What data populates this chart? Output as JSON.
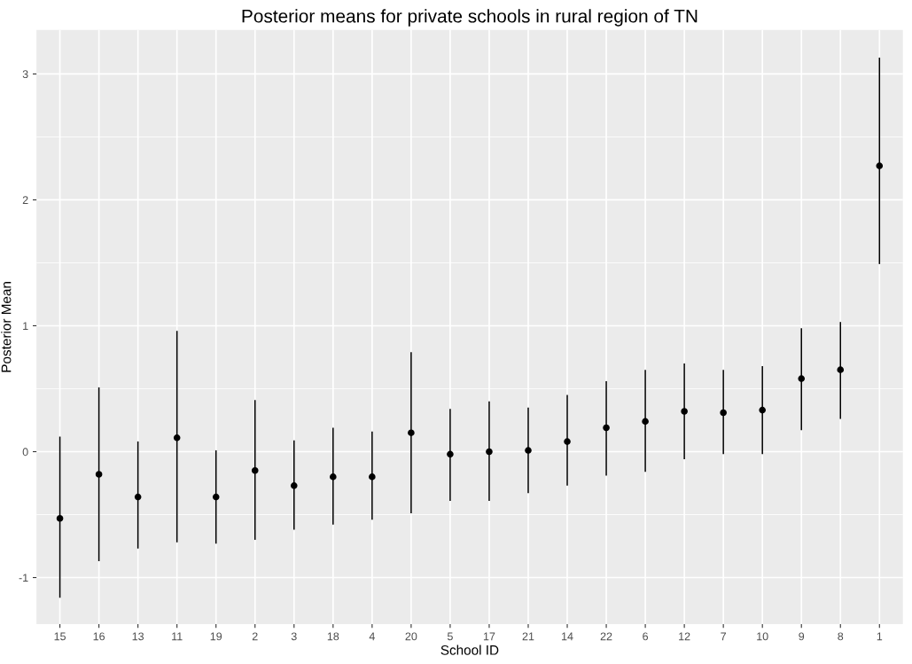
{
  "chart_data": {
    "type": "scatter",
    "title": "Posterior means for private schools in rural region of TN",
    "xlabel": "School ID",
    "ylabel": "Posterior Mean",
    "categories": [
      "15",
      "16",
      "13",
      "11",
      "19",
      "2",
      "3",
      "18",
      "4",
      "20",
      "5",
      "17",
      "21",
      "14",
      "22",
      "6",
      "12",
      "7",
      "10",
      "9",
      "8",
      "1"
    ],
    "values": [
      -0.53,
      -0.18,
      -0.36,
      0.11,
      -0.36,
      -0.15,
      -0.27,
      -0.2,
      -0.2,
      0.15,
      -0.02,
      0.0,
      0.01,
      0.08,
      0.19,
      0.24,
      0.32,
      0.31,
      0.33,
      0.58,
      0.65,
      2.27
    ],
    "errors": [
      [
        -1.16,
        0.12
      ],
      [
        -0.87,
        0.51
      ],
      [
        -0.77,
        0.08
      ],
      [
        -0.72,
        0.96
      ],
      [
        -0.73,
        0.01
      ],
      [
        -0.7,
        0.41
      ],
      [
        -0.62,
        0.09
      ],
      [
        -0.58,
        0.19
      ],
      [
        -0.54,
        0.16
      ],
      [
        -0.49,
        0.79
      ],
      [
        -0.39,
        0.34
      ],
      [
        -0.39,
        0.4
      ],
      [
        -0.33,
        0.35
      ],
      [
        -0.27,
        0.45
      ],
      [
        -0.19,
        0.56
      ],
      [
        -0.16,
        0.65
      ],
      [
        -0.06,
        0.7
      ],
      [
        -0.02,
        0.65
      ],
      [
        -0.02,
        0.68
      ],
      [
        0.17,
        0.98
      ],
      [
        0.26,
        1.03
      ],
      [
        1.49,
        3.13
      ]
    ],
    "color": "#000000",
    "marker": "circle",
    "grid": true,
    "ylim": [
      -1.37,
      3.35
    ],
    "yticks": [
      -1,
      0,
      1,
      2,
      3
    ]
  }
}
